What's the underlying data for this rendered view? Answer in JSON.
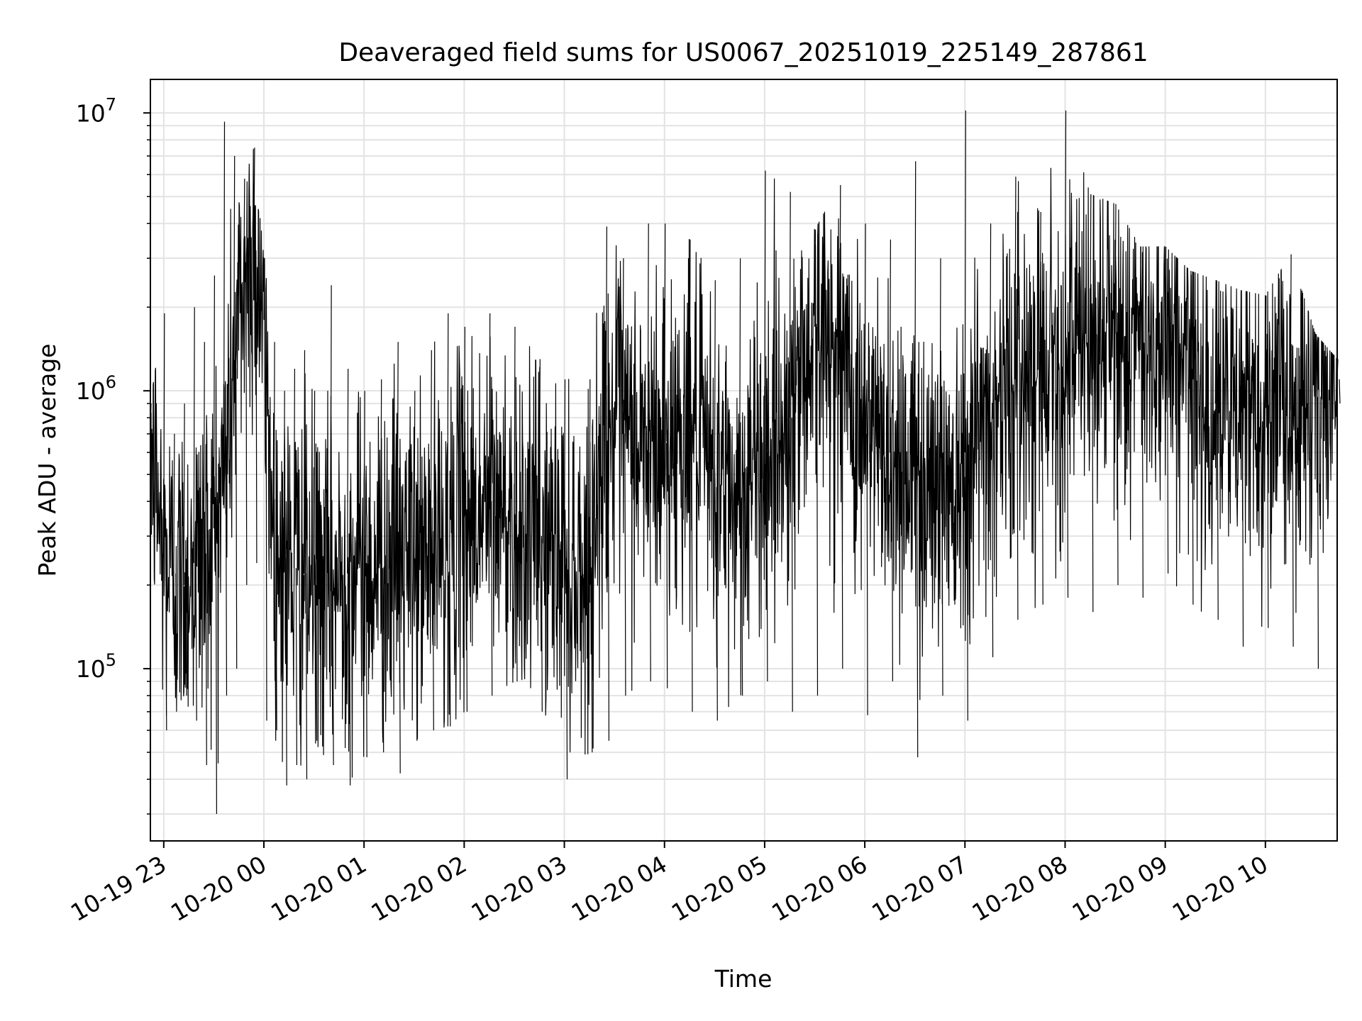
{
  "chart_data": {
    "type": "line",
    "title": "Deaveraged field sums for US0067_20251019_225149_287861",
    "xlabel": "Time",
    "ylabel": "Peak ADU - average",
    "y_scale": "log",
    "ylim": [
      24000,
      13200000
    ],
    "xlim": [
      "2025-10-19 22:52",
      "2025-10-20 10:43"
    ],
    "grid": true,
    "legend": "none",
    "line_color": "#000000",
    "x_ticks": [
      {
        "t": "2025-10-19 23:00",
        "label": "10-19 23"
      },
      {
        "t": "2025-10-20 00:00",
        "label": "10-20 00"
      },
      {
        "t": "2025-10-20 01:00",
        "label": "10-20 01"
      },
      {
        "t": "2025-10-20 02:00",
        "label": "10-20 02"
      },
      {
        "t": "2025-10-20 03:00",
        "label": "10-20 03"
      },
      {
        "t": "2025-10-20 04:00",
        "label": "10-20 04"
      },
      {
        "t": "2025-10-20 05:00",
        "label": "10-20 05"
      },
      {
        "t": "2025-10-20 06:00",
        "label": "10-20 06"
      },
      {
        "t": "2025-10-20 07:00",
        "label": "10-20 07"
      },
      {
        "t": "2025-10-20 08:00",
        "label": "10-20 08"
      },
      {
        "t": "2025-10-20 09:00",
        "label": "10-20 09"
      },
      {
        "t": "2025-10-20 10:00",
        "label": "10-20 10"
      }
    ],
    "y_ticks": [
      {
        "value": 100000,
        "base": "10",
        "exp": "5"
      },
      {
        "value": 1000000,
        "base": "10",
        "exp": "6"
      },
      {
        "value": 10000000,
        "base": "10",
        "exp": "7"
      }
    ],
    "series": [
      {
        "x": [
          "2025-10-19 22:52",
          "2025-10-19 23:00",
          "2025-10-19 23:06",
          "2025-10-19 23:12",
          "2025-10-19 23:18",
          "2025-10-19 23:24",
          "2025-10-19 23:30",
          "2025-10-19 23:36",
          "2025-10-19 23:42",
          "2025-10-19 23:48",
          "2025-10-19 23:54",
          "2025-10-20 00:00",
          "2025-10-20 00:06",
          "2025-10-20 00:12",
          "2025-10-20 00:18",
          "2025-10-20 00:24",
          "2025-10-20 00:30",
          "2025-10-20 00:40",
          "2025-10-20 00:50",
          "2025-10-20 01:00",
          "2025-10-20 01:10",
          "2025-10-20 01:20",
          "2025-10-20 01:30",
          "2025-10-20 01:40",
          "2025-10-20 01:50",
          "2025-10-20 02:00",
          "2025-10-20 02:15",
          "2025-10-20 02:30",
          "2025-10-20 02:45",
          "2025-10-20 03:00",
          "2025-10-20 03:15",
          "2025-10-20 03:25",
          "2025-10-20 03:35",
          "2025-10-20 03:50",
          "2025-10-20 04:00",
          "2025-10-20 04:15",
          "2025-10-20 04:30",
          "2025-10-20 04:45",
          "2025-10-20 05:00",
          "2025-10-20 05:15",
          "2025-10-20 05:30",
          "2025-10-20 05:45",
          "2025-10-20 06:00",
          "2025-10-20 06:15",
          "2025-10-20 06:30",
          "2025-10-20 06:45",
          "2025-10-20 07:00",
          "2025-10-20 07:15",
          "2025-10-20 07:30",
          "2025-10-20 07:45",
          "2025-10-20 08:00",
          "2025-10-20 08:15",
          "2025-10-20 08:30",
          "2025-10-20 08:45",
          "2025-10-20 09:00",
          "2025-10-20 09:15",
          "2025-10-20 09:30",
          "2025-10-20 09:45",
          "2025-10-20 10:00",
          "2025-10-20 10:15",
          "2025-10-20 10:30",
          "2025-10-20 10:43"
        ],
        "y": [
          700000,
          250000,
          220000,
          200000,
          240000,
          260000,
          320000,
          500000,
          1200000,
          2500000,
          3200000,
          1800000,
          280000,
          250000,
          230000,
          220000,
          200000,
          190000,
          220000,
          240000,
          230000,
          250000,
          240000,
          260000,
          280000,
          350000,
          400000,
          330000,
          300000,
          250000,
          220000,
          800000,
          700000,
          600000,
          650000,
          750000,
          450000,
          400000,
          600000,
          800000,
          1700000,
          1300000,
          700000,
          600000,
          500000,
          450000,
          600000,
          800000,
          1100000,
          1400000,
          1300000,
          1500000,
          1600000,
          1400000,
          1700000,
          1200000,
          900000,
          800000,
          900000,
          850000,
          950000,
          1100000
        ],
        "y_max": [
          900000,
          1900000,
          700000,
          900000,
          2000000,
          1500000,
          2600000,
          9300000,
          7000000,
          5800000,
          7500000,
          3000000,
          1500000,
          1000000,
          1200000,
          1400000,
          1000000,
          2400000,
          1200000,
          1000000,
          1100000,
          1500000,
          1000000,
          1400000,
          1900000,
          1700000,
          1900000,
          1700000,
          1300000,
          1100000,
          1100000,
          3900000,
          3000000,
          4000000,
          4000000,
          3500000,
          2500000,
          3000000,
          6200000,
          5200000,
          3800000,
          5500000,
          4000000,
          3500000,
          6700000,
          3000000,
          10200000,
          4000000,
          5900000,
          4400000,
          10200000,
          5100000,
          4700000,
          3300000,
          3300000,
          2700000,
          2500000,
          2300000,
          2200000,
          3100000,
          1600000,
          1300000
        ],
        "y_min": [
          350000,
          60000,
          70000,
          80000,
          65000,
          45000,
          30000,
          80000,
          100000,
          200000,
          240000,
          65000,
          60000,
          38000,
          45000,
          40000,
          55000,
          45000,
          38000,
          48000,
          50000,
          42000,
          55000,
          60000,
          62000,
          70000,
          80000,
          90000,
          70000,
          40000,
          50000,
          55000,
          80000,
          90000,
          85000,
          70000,
          65000,
          80000,
          90000,
          70000,
          80000,
          100000,
          68000,
          90000,
          48000,
          80000,
          65000,
          110000,
          150000,
          170000,
          180000,
          160000,
          200000,
          180000,
          220000,
          170000,
          150000,
          120000,
          140000,
          120000,
          100000,
          900000
        ]
      }
    ]
  }
}
